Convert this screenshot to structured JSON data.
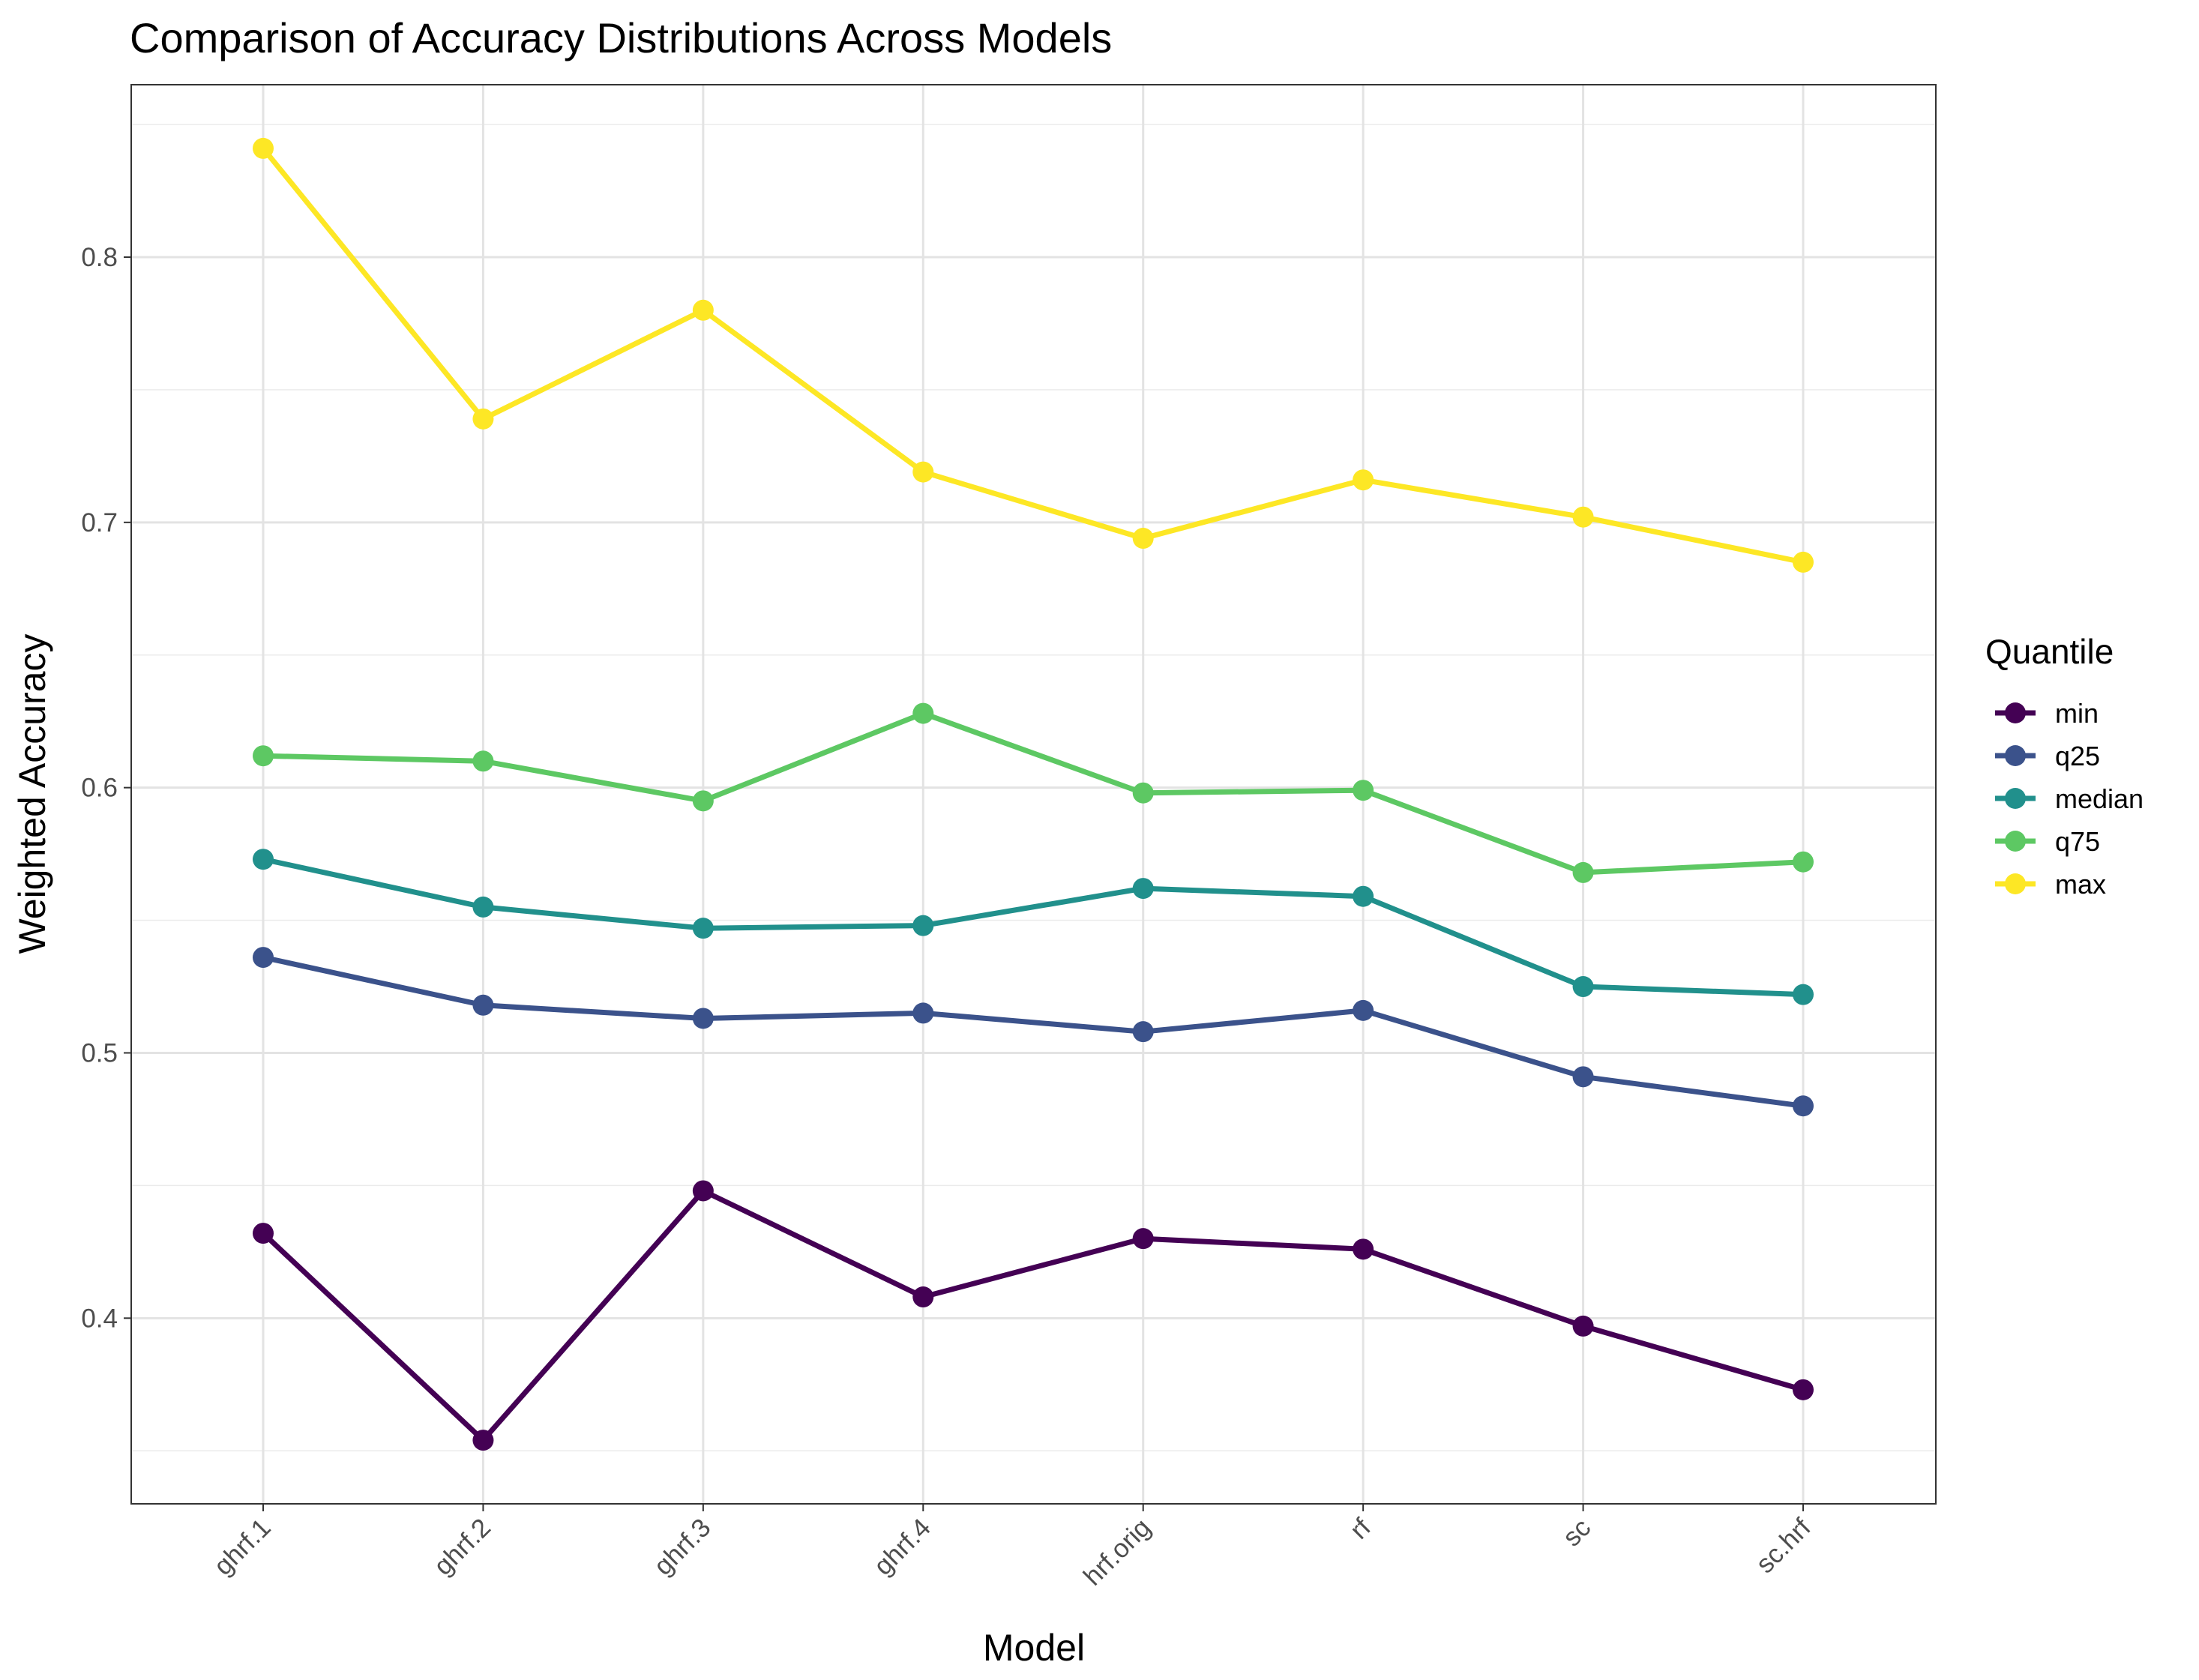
{
  "chart_data": {
    "type": "line",
    "title": "Comparison of Accuracy Distributions Across Models",
    "xlabel": "Model",
    "ylabel": "Weighted Accuracy",
    "categories": [
      "ghrf.1",
      "ghrf.2",
      "ghrf.3",
      "ghrf.4",
      "hrf.orig",
      "rf",
      "sc",
      "sc.hrf"
    ],
    "ylim": [
      0.33,
      0.865
    ],
    "yticks": [
      0.4,
      0.5,
      0.6,
      0.7,
      0.8
    ],
    "ytick_labels": [
      "0.4",
      "0.5",
      "0.6",
      "0.7",
      "0.8"
    ],
    "grid": true,
    "legend": {
      "title": "Quantile",
      "placement": "right"
    },
    "series": [
      {
        "name": "min",
        "color": "#440154",
        "values": [
          0.432,
          0.354,
          0.448,
          0.408,
          0.43,
          0.426,
          0.397,
          0.373
        ]
      },
      {
        "name": "q25",
        "color": "#3b528b",
        "values": [
          0.536,
          0.518,
          0.513,
          0.515,
          0.508,
          0.516,
          0.491,
          0.48
        ]
      },
      {
        "name": "median",
        "color": "#21908c",
        "values": [
          0.573,
          0.555,
          0.547,
          0.548,
          0.562,
          0.559,
          0.525,
          0.522
        ]
      },
      {
        "name": "q75",
        "color": "#5dc863",
        "values": [
          0.612,
          0.61,
          0.595,
          0.628,
          0.598,
          0.599,
          0.568,
          0.572
        ]
      },
      {
        "name": "max",
        "color": "#fde725",
        "values": [
          0.841,
          0.739,
          0.78,
          0.719,
          0.694,
          0.716,
          0.702,
          0.685
        ]
      }
    ]
  }
}
